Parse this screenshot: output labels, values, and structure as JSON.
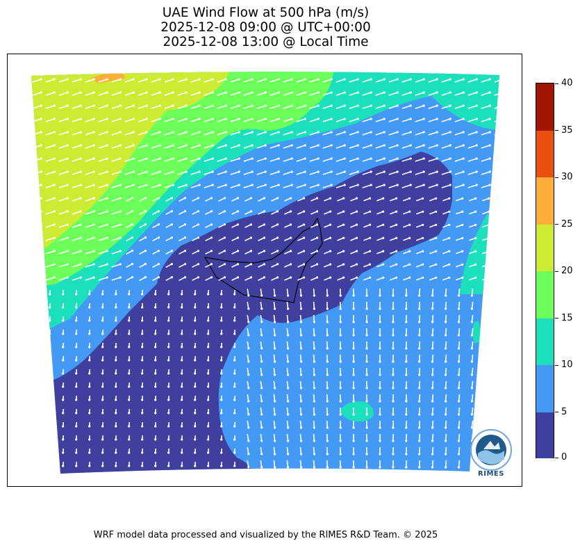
{
  "title": {
    "line1": "UAE Wind Flow at 500 hPa (m/s)",
    "line2": "2025-12-08 09:00 @ UTC+00:00",
    "line3": "2025-12-08 13:00 @ Local Time"
  },
  "colorbar": {
    "unit": "m/s",
    "ticks": [
      "0",
      "5",
      "10",
      "15",
      "20",
      "25",
      "30",
      "35",
      "40"
    ],
    "bands": [
      {
        "from": 0,
        "to": 5,
        "color": "#3f3f9d"
      },
      {
        "from": 5,
        "to": 10,
        "color": "#4499f5"
      },
      {
        "from": 10,
        "to": 15,
        "color": "#1cdfbc"
      },
      {
        "from": 15,
        "to": 20,
        "color": "#6cff59"
      },
      {
        "from": 20,
        "to": 25,
        "color": "#cdeb33"
      },
      {
        "from": 25,
        "to": 30,
        "color": "#ffae39"
      },
      {
        "from": 30,
        "to": 35,
        "color": "#eb5011"
      },
      {
        "from": 35,
        "to": 40,
        "color": "#a11602"
      }
    ]
  },
  "logo": {
    "name": "rimes-logo",
    "text": "RIMES"
  },
  "footer": "WRF model data processed and visualized by the RIMES R&D Team. © 2025"
}
